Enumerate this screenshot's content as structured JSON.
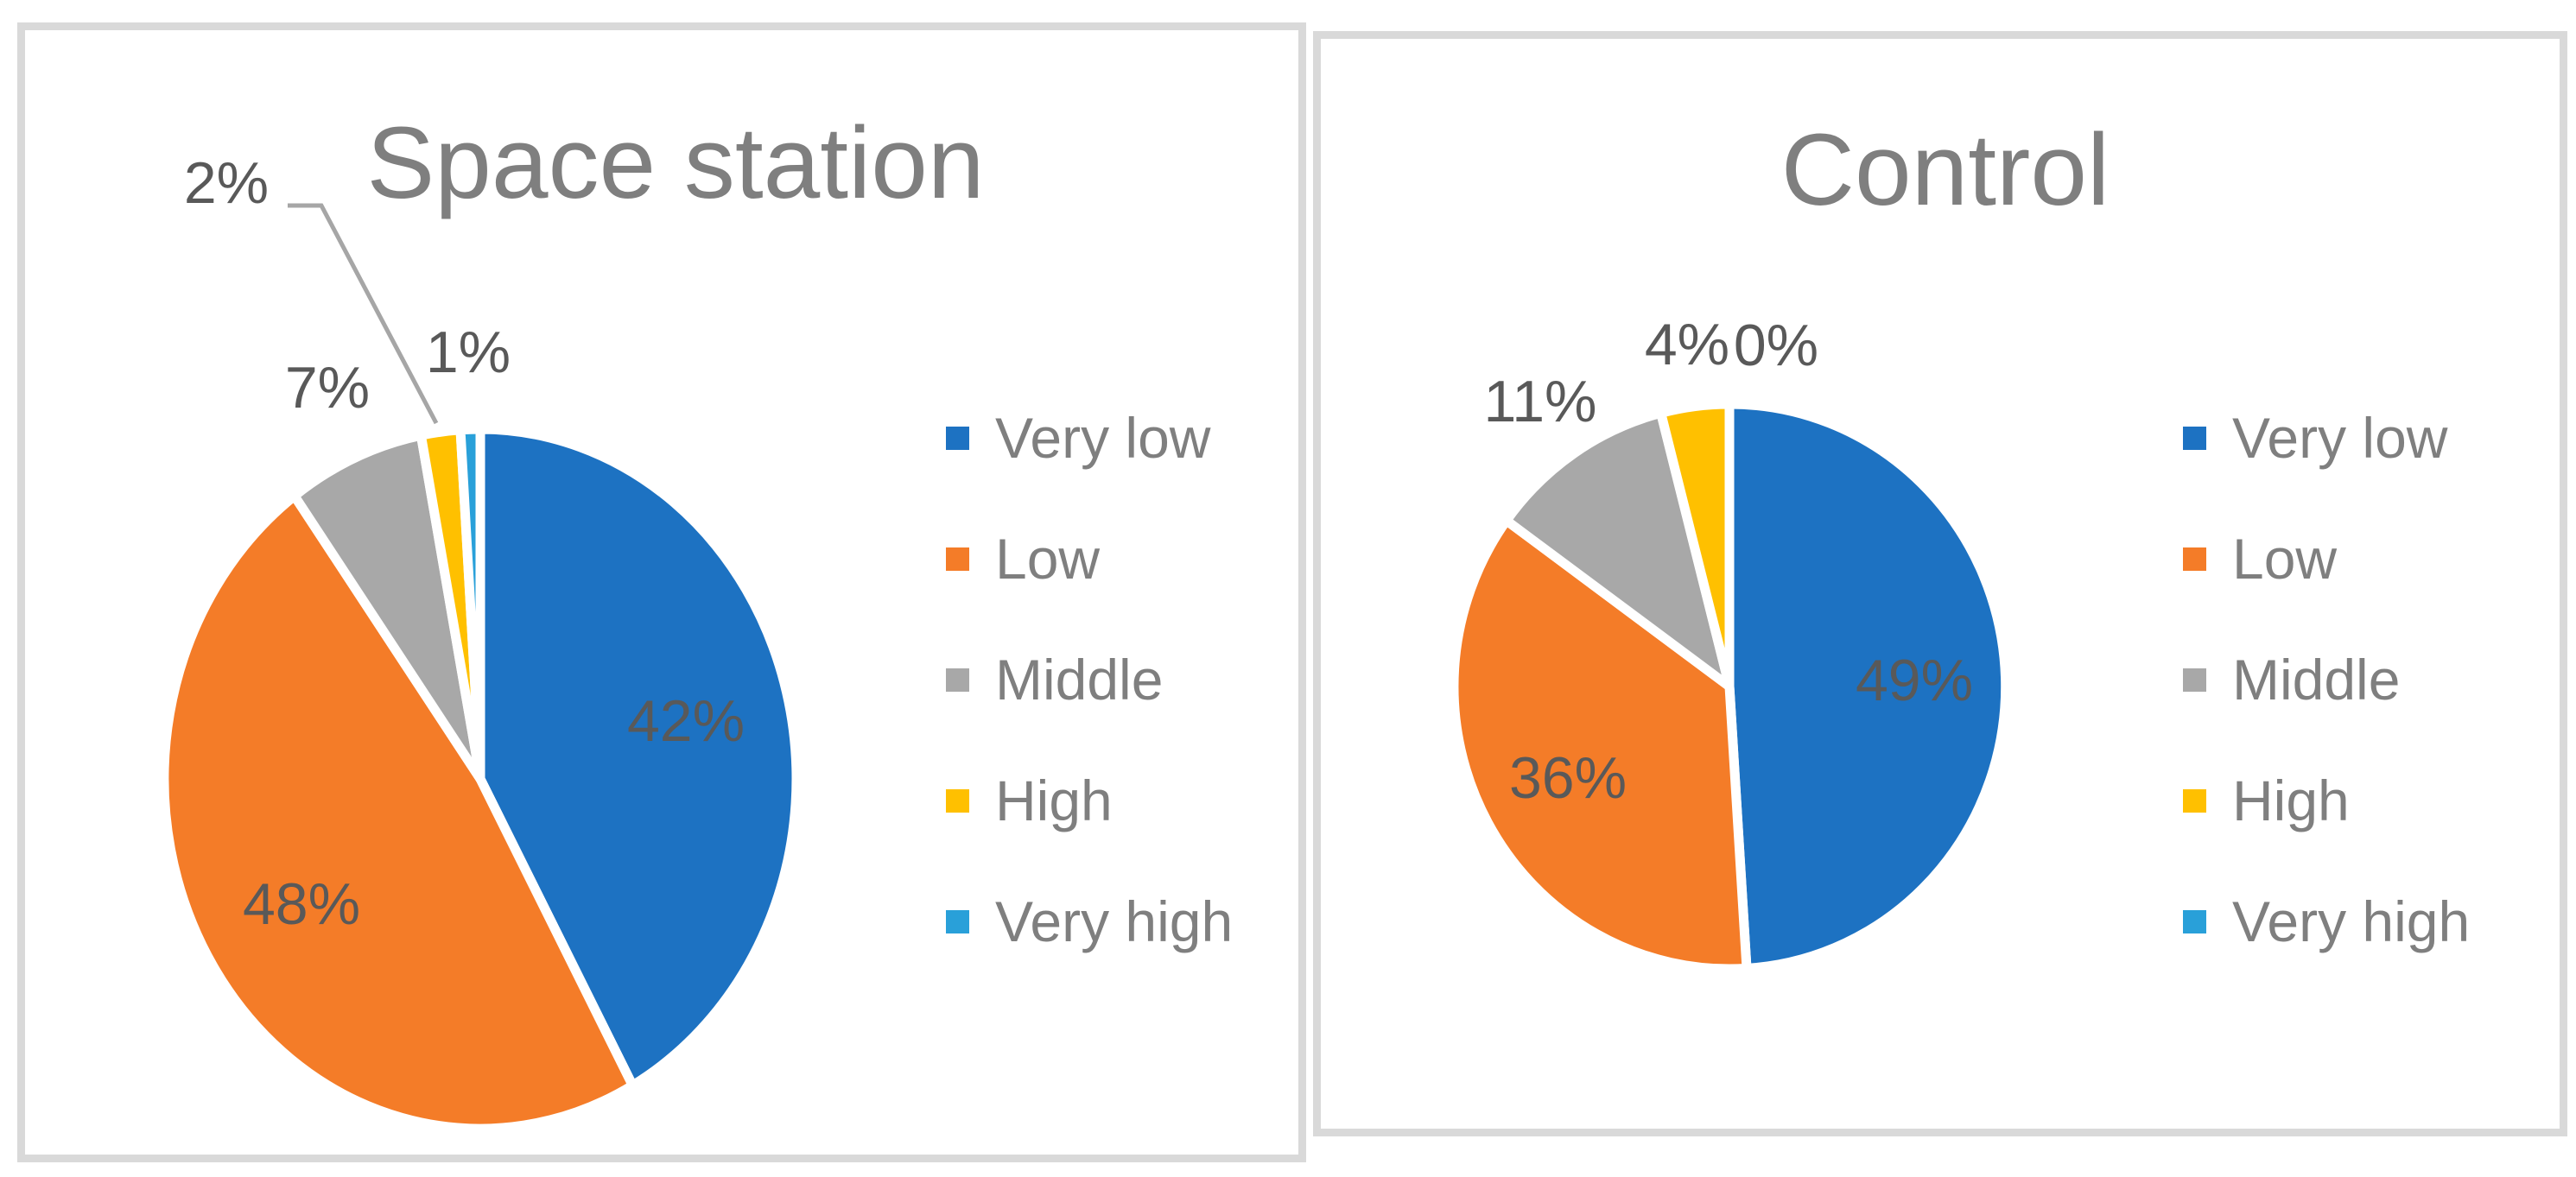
{
  "page": {
    "background": "#FFFFFF"
  },
  "chart_data": [
    {
      "type": "pie",
      "title": "Space station",
      "categories": [
        "Very low",
        "Low",
        "Middle",
        "High",
        "Very high"
      ],
      "values": [
        42,
        48,
        7,
        2,
        1
      ],
      "unit": "%",
      "data_labels": [
        "42%",
        "48%",
        "7%",
        "2%",
        "1%"
      ],
      "legend_position": "right",
      "colors": [
        "#1D72C2",
        "#F47C28",
        "#A8A8A8",
        "#FFC000",
        "#29A0D9"
      ],
      "label_leader_line": {
        "from_label": "2%",
        "to_slice": "High"
      }
    },
    {
      "type": "pie",
      "title": "Control",
      "categories": [
        "Very low",
        "Low",
        "Middle",
        "High",
        "Very high"
      ],
      "values": [
        49,
        36,
        11,
        4,
        0
      ],
      "unit": "%",
      "data_labels": [
        "49%",
        "36%",
        "11%",
        "4%",
        "0%"
      ],
      "legend_position": "right",
      "colors": [
        "#1D72C2",
        "#F47C28",
        "#A8A8A8",
        "#FFC000",
        "#29A0D9"
      ],
      "label_leader_line": null
    }
  ],
  "styles": {
    "title_color": "#7F7F7F",
    "data_label_color": "#595959",
    "legend_text_color": "#7F7F7F",
    "panel_border_color": "#D9D9D9",
    "leader_line_color": "#A6A6A6",
    "slice_separator_color": "#FFFFFF"
  }
}
